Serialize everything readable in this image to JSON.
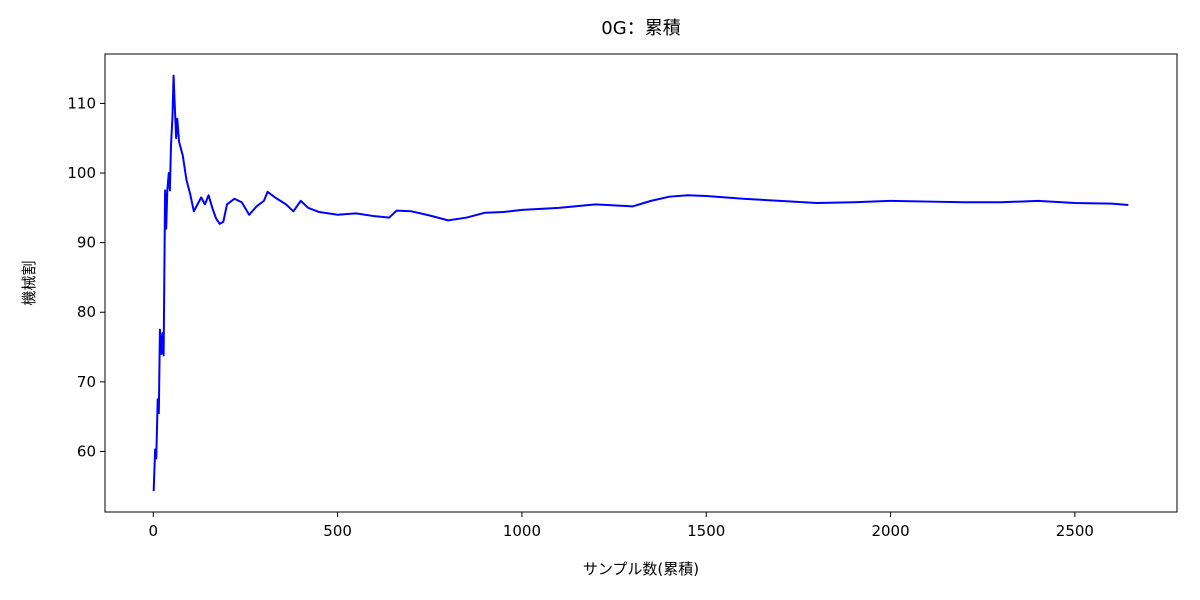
{
  "chart_data": {
    "type": "line",
    "title": "0G：累積",
    "xlabel": "サンプル数(累積)",
    "ylabel": "機械割",
    "x": [
      1,
      5,
      8,
      12,
      15,
      18,
      22,
      25,
      28,
      32,
      35,
      38,
      42,
      45,
      48,
      52,
      55,
      58,
      62,
      65,
      70,
      80,
      90,
      100,
      110,
      120,
      130,
      140,
      150,
      160,
      170,
      180,
      190,
      200,
      220,
      240,
      260,
      280,
      300,
      310,
      330,
      360,
      380,
      400,
      420,
      450,
      500,
      550,
      600,
      640,
      660,
      700,
      750,
      800,
      850,
      900,
      950,
      1000,
      1100,
      1200,
      1300,
      1350,
      1400,
      1450,
      1500,
      1600,
      1700,
      1800,
      1900,
      2000,
      2100,
      2200,
      2300,
      2400,
      2500,
      2600,
      2645
    ],
    "series": [
      {
        "name": "機械割",
        "color": "#0000ff",
        "values": [
          54.3,
          60.3,
          59,
          67.5,
          65.5,
          77.5,
          74,
          77,
          73.8,
          97.5,
          92,
          97.5,
          100,
          97.5,
          104,
          108,
          114,
          110,
          105,
          107.8,
          104.5,
          102.5,
          99,
          97,
          94.5,
          95.5,
          96.5,
          95.5,
          96.8,
          95,
          93.5,
          92.7,
          93,
          95.5,
          96.3,
          95.8,
          94,
          95.2,
          96,
          97.3,
          96.5,
          95.5,
          94.5,
          96,
          95,
          94.4,
          94,
          94.2,
          93.8,
          93.6,
          94.6,
          94.5,
          93.9,
          93.2,
          93.6,
          94.3,
          94.4,
          94.7,
          95,
          95.5,
          95.2,
          96,
          96.6,
          96.8,
          96.7,
          96.3,
          96,
          95.7,
          95.8,
          96,
          95.9,
          95.8,
          95.8,
          96,
          95.7,
          95.6,
          95.4
        ]
      }
    ],
    "xlim": [
      -131,
      2777
    ],
    "ylim": [
      51.3,
      117.1
    ],
    "xticks": [
      0,
      500,
      1000,
      1500,
      2000,
      2500
    ],
    "yticks": [
      60,
      70,
      80,
      90,
      100,
      110
    ]
  }
}
